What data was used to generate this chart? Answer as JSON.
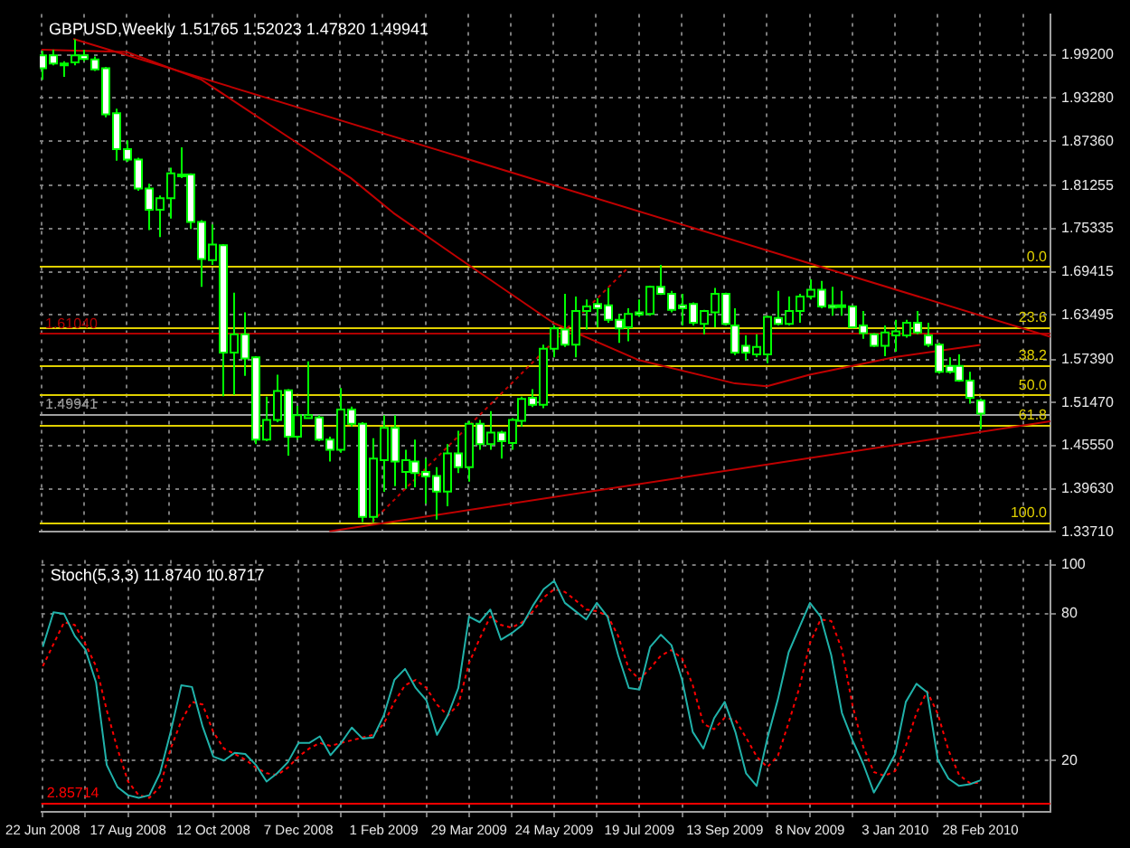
{
  "chart_data": [
    {
      "type": "candlestick",
      "title": "GBPUSD,Weekly 1.51765 1.52023 1.47820 1.49941",
      "colors": [
        "#ffffff",
        "#ffffff",
        "#ffffff",
        "#000000",
        "#ffffff",
        "#ffffff",
        "#ffffff",
        "#ffffff",
        "#ffffff",
        "#ffffff",
        "#ffffff",
        "#000000",
        "#000000",
        "#ffffff",
        "#ffffff",
        "#ffffff",
        "#000000",
        "#ffffff",
        "#000000",
        "#ffffff",
        "#ffffff",
        "#000000",
        "#000000",
        "#ffffff",
        "#000000",
        "#000000",
        "#ffffff",
        "#ffffff",
        "#000000",
        "#ffffff",
        "#ffffff",
        "#000000",
        "#000000",
        "#ffffff",
        "#000000",
        "#ffffff",
        "#ffffff",
        "#ffffff",
        "#000000",
        "#ffffff",
        "#000000",
        "#ffffff",
        "#000000",
        "#ffffff",
        "#000000",
        "#000000",
        "#ffffff",
        "#000000",
        "#000000",
        "#ffffff",
        "#000000",
        "#000000",
        "#ffffff",
        "#ffffff",
        "#ffffff",
        "#000000",
        "#ffffff",
        "#000000",
        "#ffffff",
        "#ffffff",
        "#ffffff",
        "#ffffff",
        "#000000",
        "#000000",
        "#ffffff",
        "#ffffff",
        "#ffffff",
        "#000000",
        "#000000",
        "#ffffff",
        "#000000",
        "#000000",
        "#000000",
        "#ffffff",
        "#ffffff",
        "#ffffff",
        "#ffffff",
        "#ffffff",
        "#ffffff",
        "#000000",
        "#000000",
        "#000000",
        "#ffffff",
        "#ffffff",
        "#ffffff",
        "#ffffff",
        "#ffffff",
        "#ffffff",
        "#ffffff"
      ],
      "x": [
        "2008-06-22",
        "2008-06-29",
        "2008-07-06",
        "2008-07-13",
        "2008-07-20",
        "2008-07-27",
        "2008-08-03",
        "2008-08-10",
        "2008-08-17",
        "2008-08-24",
        "2008-08-31",
        "2008-09-07",
        "2008-09-14",
        "2008-09-21",
        "2008-09-28",
        "2008-10-05",
        "2008-10-12",
        "2008-10-19",
        "2008-10-26",
        "2008-11-02",
        "2008-11-09",
        "2008-11-16",
        "2008-11-23",
        "2008-11-30",
        "2008-12-07",
        "2008-12-14",
        "2008-12-21",
        "2008-12-28",
        "2009-01-04",
        "2009-01-11",
        "2009-01-18",
        "2009-01-25",
        "2009-02-01",
        "2009-02-08",
        "2009-02-15",
        "2009-02-22",
        "2009-03-01",
        "2009-03-08",
        "2009-03-15",
        "2009-03-22",
        "2009-03-29",
        "2009-04-05",
        "2009-04-12",
        "2009-04-19",
        "2009-04-26",
        "2009-05-03",
        "2009-05-10",
        "2009-05-17",
        "2009-05-24",
        "2009-05-31",
        "2009-06-07",
        "2009-06-14",
        "2009-06-21",
        "2009-06-28",
        "2009-07-05",
        "2009-07-12",
        "2009-07-19",
        "2009-07-26",
        "2009-08-02",
        "2009-08-09",
        "2009-08-16",
        "2009-08-23",
        "2009-08-30",
        "2009-09-06",
        "2009-09-13",
        "2009-09-20",
        "2009-09-27",
        "2009-10-04",
        "2009-10-11",
        "2009-10-18",
        "2009-10-25",
        "2009-11-01",
        "2009-11-08",
        "2009-11-15",
        "2009-11-22",
        "2009-11-29",
        "2009-12-06",
        "2009-12-13",
        "2009-12-20",
        "2009-12-27",
        "2010-01-03",
        "2010-01-10",
        "2010-01-17",
        "2010-01-24",
        "2010-01-31",
        "2010-02-07",
        "2010-02-14",
        "2010-02-21",
        "2010-02-28"
      ],
      "ohlc": [
        [
          1.9913,
          1.9976,
          1.9579,
          1.9738
        ],
        [
          1.9913,
          1.9992,
          1.9778,
          1.9802
        ],
        [
          1.9802,
          1.9833,
          1.9619,
          1.9786
        ],
        [
          1.9817,
          2.0135,
          1.9778,
          1.9913
        ],
        [
          1.9913,
          1.9992,
          1.9833,
          1.9865
        ],
        [
          1.9857,
          1.9897,
          1.9698,
          1.9722
        ],
        [
          1.9738,
          1.9754,
          1.9063,
          1.9103
        ],
        [
          1.9119,
          1.9182,
          1.8468,
          1.8626
        ],
        [
          1.8626,
          1.8746,
          1.8452,
          1.8483
        ],
        [
          1.8483,
          1.8507,
          1.8055,
          1.8087
        ],
        [
          1.8087,
          1.815,
          1.7515,
          1.7793
        ],
        [
          1.7793,
          1.7991,
          1.742,
          1.7952
        ],
        [
          1.7952,
          1.8372,
          1.7674,
          1.8293
        ],
        [
          1.8277,
          1.865,
          1.8229,
          1.8261
        ],
        [
          1.8277,
          1.8293,
          1.7531,
          1.7626
        ],
        [
          1.7626,
          1.765,
          1.6737,
          1.7118
        ],
        [
          1.7102,
          1.7594,
          1.7038,
          1.7316
        ],
        [
          1.7308,
          1.7324,
          1.5236,
          1.5832
        ],
        [
          1.5832,
          1.6657,
          1.5252,
          1.6086
        ],
        [
          1.6086,
          1.6387,
          1.5514,
          1.5752
        ],
        [
          1.5768,
          1.5784,
          1.4577,
          1.464
        ],
        [
          1.464,
          1.5228,
          1.4617,
          1.491
        ],
        [
          1.491,
          1.553,
          1.4879,
          1.5307
        ],
        [
          1.5315,
          1.5331,
          1.4418,
          1.468
        ],
        [
          1.468,
          1.5101,
          1.464,
          1.4974
        ],
        [
          1.4934,
          1.5712,
          1.4926,
          1.4974
        ],
        [
          1.4942,
          1.4974,
          1.4617,
          1.464
        ],
        [
          1.464,
          1.468,
          1.4339,
          1.4498
        ],
        [
          1.4498,
          1.5347,
          1.4458,
          1.5053
        ],
        [
          1.5053,
          1.5093,
          1.4815,
          1.4855
        ],
        [
          1.4855,
          1.4879,
          1.3505,
          1.3577
        ],
        [
          1.3577,
          1.4656,
          1.3505,
          1.4378
        ],
        [
          1.4355,
          1.4974,
          1.3921,
          1.4799
        ],
        [
          1.4799,
          1.4974,
          1.4001,
          1.4339
        ],
        [
          1.4196,
          1.4498,
          1.3961,
          1.4355
        ],
        [
          1.4339,
          1.464,
          1.3985,
          1.418
        ],
        [
          1.4196,
          1.4379,
          1.3762,
          1.4132
        ],
        [
          1.414,
          1.4259,
          1.354,
          1.3926
        ],
        [
          1.3926,
          1.4577,
          1.3723,
          1.445
        ],
        [
          1.445,
          1.476,
          1.418,
          1.4259
        ],
        [
          1.4259,
          1.4895,
          1.4061,
          1.4855
        ],
        [
          1.4855,
          1.491,
          1.4498,
          1.4577
        ],
        [
          1.4577,
          1.503,
          1.4498,
          1.4736
        ],
        [
          1.4736,
          1.476,
          1.4379,
          1.4617
        ],
        [
          1.4593,
          1.4934,
          1.4498,
          1.491
        ],
        [
          1.4895,
          1.5228,
          1.4815,
          1.5196
        ],
        [
          1.5212,
          1.5331,
          1.5085,
          1.5117
        ],
        [
          1.5117,
          1.5943,
          1.5069,
          1.5887
        ],
        [
          1.5887,
          1.6205,
          1.5768,
          1.6165
        ],
        [
          1.6149,
          1.6641,
          1.5911,
          1.5943
        ],
        [
          1.5943,
          1.6602,
          1.5768,
          1.6403
        ],
        [
          1.6403,
          1.6562,
          1.6149,
          1.6467
        ],
        [
          1.6499,
          1.6578,
          1.6181,
          1.6443
        ],
        [
          1.6483,
          1.6721,
          1.6244,
          1.6284
        ],
        [
          1.6284,
          1.6364,
          1.5967,
          1.6165
        ],
        [
          1.6181,
          1.6443,
          1.599,
          1.6364
        ],
        [
          1.6387,
          1.6562,
          1.6324,
          1.6356
        ],
        [
          1.6364,
          1.6753,
          1.634,
          1.6737
        ],
        [
          1.6737,
          1.7038,
          1.6625,
          1.6641
        ],
        [
          1.6641,
          1.6681,
          1.6387,
          1.6419
        ],
        [
          1.6483,
          1.6641,
          1.6205,
          1.6443
        ],
        [
          1.6499,
          1.6522,
          1.6205,
          1.6244
        ],
        [
          1.6228,
          1.6419,
          1.6086,
          1.6403
        ],
        [
          1.6387,
          1.6721,
          1.6181,
          1.6641
        ],
        [
          1.6641,
          1.6657,
          1.6205,
          1.6228
        ],
        [
          1.6205,
          1.6443,
          1.58,
          1.5832
        ],
        [
          1.5927,
          1.607,
          1.5728,
          1.5832
        ],
        [
          1.5808,
          1.6086,
          1.5768,
          1.5911
        ],
        [
          1.5808,
          1.634,
          1.5689,
          1.6324
        ],
        [
          1.6308,
          1.6681,
          1.6205,
          1.6228
        ],
        [
          1.6228,
          1.6602,
          1.6205,
          1.6403
        ],
        [
          1.6403,
          1.6641,
          1.6244,
          1.6602
        ],
        [
          1.6602,
          1.684,
          1.6562,
          1.6697
        ],
        [
          1.6697,
          1.6816,
          1.6443,
          1.6467
        ],
        [
          1.6483,
          1.6737,
          1.634,
          1.6451
        ],
        [
          1.6483,
          1.6681,
          1.634,
          1.6459
        ],
        [
          1.6467,
          1.6483,
          1.6165,
          1.6181
        ],
        [
          1.6205,
          1.6403,
          1.6022,
          1.6101
        ],
        [
          1.6086,
          1.6101,
          1.5911,
          1.5927
        ],
        [
          1.5927,
          1.6205,
          1.5784,
          1.611
        ],
        [
          1.607,
          1.6284,
          1.5847,
          1.6125
        ],
        [
          1.607,
          1.6284,
          1.6038,
          1.6244
        ],
        [
          1.6244,
          1.6403,
          1.6086,
          1.611
        ],
        [
          1.607,
          1.6244,
          1.5911,
          1.5943
        ],
        [
          1.5943,
          1.5967,
          1.5546,
          1.557
        ],
        [
          1.5649,
          1.5768,
          1.5546,
          1.557
        ],
        [
          1.5649,
          1.5808,
          1.5434,
          1.545
        ],
        [
          1.545,
          1.557,
          1.5133,
          1.5212
        ],
        [
          1.51765,
          1.52023,
          1.4782,
          1.49941
        ]
      ],
      "series": [
        {
          "type": "line",
          "color": "#c00000",
          "x": [
            "2008-07-13",
            "2010-04-15"
          ],
          "values": [
            2.014,
            1.605
          ]
        },
        {
          "type": "line",
          "color": "#c00000",
          "x": [
            "2008-06-22",
            "2008-08-17",
            "2008-10-05",
            "2008-12-07",
            "2009-01-11",
            "2009-02-08",
            "2009-03-29",
            "2009-05-24",
            "2009-07-19",
            "2009-09-20",
            "2009-10-11",
            "2009-11-08",
            "2010-01-03",
            "2010-02-28"
          ],
          "values": [
            1.999,
            1.996,
            1.958,
            1.871,
            1.823,
            1.775,
            1.704,
            1.624,
            1.573,
            1.541,
            1.537,
            1.553,
            1.577,
            1.594
          ]
        },
        {
          "type": "line",
          "color": "#c00000",
          "x": [
            "2008-12-28",
            "2010-04-15"
          ],
          "values": [
            1.338,
            1.489
          ]
        },
        {
          "type": "line",
          "color": "#c00000",
          "line_style": "dotted",
          "x": [
            "2009-01-25",
            "2009-07-12"
          ],
          "values": [
            1.351,
            1.7
          ]
        }
      ],
      "ref_lines": [
        {
          "axis": "y",
          "value": 1.702,
          "color": "#e0d000"
        },
        {
          "axis": "y",
          "value": 1.619,
          "color": "#e0d000"
        },
        {
          "axis": "y",
          "value": 1.567,
          "color": "#e0d000"
        },
        {
          "axis": "y",
          "value": 1.526,
          "color": "#e0d000"
        },
        {
          "axis": "y",
          "value": 1.484,
          "color": "#e0d000"
        },
        {
          "axis": "y",
          "value": 1.35,
          "color": "#e0d000"
        },
        {
          "axis": "y",
          "value": 1.6104,
          "label": "1.61040",
          "color": "#b00000"
        },
        {
          "axis": "y",
          "value": 1.49941,
          "label": "1.49941",
          "color": "#a0a0a0"
        }
      ],
      "annotations": [
        {
          "text": "0.0",
          "x": "2010-04-15",
          "y": 1.702
        },
        {
          "text": "23.6",
          "x": "2010-04-15",
          "y": 1.619
        },
        {
          "text": "38.2",
          "x": "2010-04-15",
          "y": 1.567
        },
        {
          "text": "50.0",
          "x": "2010-04-15",
          "y": 1.526
        },
        {
          "text": "61.8",
          "x": "2010-04-15",
          "y": 1.484
        },
        {
          "text": "100.0",
          "x": "2010-04-15",
          "y": 1.35
        }
      ],
      "xlim": [
        "2008-06-21",
        "2010-04-15"
      ],
      "xticks": [
        {
          "value": "2008-06-22",
          "label": null
        },
        {
          "value": "2008-07-20",
          "label": null
        },
        {
          "value": "2008-08-17",
          "label": null
        },
        {
          "value": "2008-09-14",
          "label": null
        },
        {
          "value": "2008-10-12",
          "label": null
        },
        {
          "value": "2008-11-09",
          "label": null
        },
        {
          "value": "2008-12-07",
          "label": null
        },
        {
          "value": "2009-01-04",
          "label": null
        },
        {
          "value": "2009-02-01",
          "label": null
        },
        {
          "value": "2009-03-01",
          "label": null
        },
        {
          "value": "2009-03-29",
          "label": null
        },
        {
          "value": "2009-04-26",
          "label": null
        },
        {
          "value": "2009-05-24",
          "label": null
        },
        {
          "value": "2009-06-21",
          "label": null
        },
        {
          "value": "2009-07-19",
          "label": null
        },
        {
          "value": "2009-08-16",
          "label": null
        },
        {
          "value": "2009-09-13",
          "label": null
        },
        {
          "value": "2009-10-11",
          "label": null
        },
        {
          "value": "2009-11-08",
          "label": null
        },
        {
          "value": "2009-12-06",
          "label": null
        },
        {
          "value": "2010-01-03",
          "label": null
        },
        {
          "value": "2010-01-31",
          "label": null
        },
        {
          "value": "2010-02-28",
          "label": null
        },
        {
          "value": "2010-03-28",
          "label": null
        }
      ],
      "ylim": [
        1.3371,
        2.048
      ],
      "yticks": [
        {
          "value": 1.992,
          "label": "1.99200"
        },
        {
          "value": 1.9328,
          "label": "1.93280"
        },
        {
          "value": 1.8736,
          "label": "1.87360"
        },
        {
          "value": 1.81255,
          "label": "1.81255"
        },
        {
          "value": 1.75335,
          "label": "1.75335"
        },
        {
          "value": 1.69415,
          "label": "1.69415"
        },
        {
          "value": 1.63495,
          "label": "1.63495"
        },
        {
          "value": 1.5739,
          "label": "1.57390"
        },
        {
          "value": 1.5147,
          "label": "1.51470"
        },
        {
          "value": 1.4555,
          "label": "1.45550"
        },
        {
          "value": 1.3963,
          "label": "1.39630"
        },
        {
          "value": 1.3371,
          "label": "1.33710"
        }
      ],
      "grid": true,
      "tick_labels": "y"
    },
    {
      "type": "line",
      "title": "Stoch(5,3,3) 11.8740 10.8717",
      "x": [
        "2008-06-22",
        "2008-06-29",
        "2008-07-06",
        "2008-07-13",
        "2008-07-20",
        "2008-07-27",
        "2008-08-03",
        "2008-08-10",
        "2008-08-17",
        "2008-08-24",
        "2008-08-31",
        "2008-09-07",
        "2008-09-14",
        "2008-09-21",
        "2008-09-28",
        "2008-10-05",
        "2008-10-12",
        "2008-10-19",
        "2008-10-26",
        "2008-11-02",
        "2008-11-09",
        "2008-11-16",
        "2008-11-23",
        "2008-11-30",
        "2008-12-07",
        "2008-12-14",
        "2008-12-21",
        "2008-12-28",
        "2009-01-04",
        "2009-01-11",
        "2009-01-18",
        "2009-01-25",
        "2009-02-01",
        "2009-02-08",
        "2009-02-15",
        "2009-02-22",
        "2009-03-01",
        "2009-03-08",
        "2009-03-15",
        "2009-03-22",
        "2009-03-29",
        "2009-04-05",
        "2009-04-12",
        "2009-04-19",
        "2009-04-26",
        "2009-05-03",
        "2009-05-10",
        "2009-05-17",
        "2009-05-24",
        "2009-05-31",
        "2009-06-07",
        "2009-06-14",
        "2009-06-21",
        "2009-06-28",
        "2009-07-05",
        "2009-07-12",
        "2009-07-19",
        "2009-07-26",
        "2009-08-02",
        "2009-08-09",
        "2009-08-16",
        "2009-08-23",
        "2009-08-30",
        "2009-09-06",
        "2009-09-13",
        "2009-09-20",
        "2009-09-27",
        "2009-10-04",
        "2009-10-11",
        "2009-10-18",
        "2009-10-25",
        "2009-11-01",
        "2009-11-08",
        "2009-11-15",
        "2009-11-22",
        "2009-11-29",
        "2009-12-06",
        "2009-12-13",
        "2009-12-20",
        "2009-12-27",
        "2010-01-03",
        "2010-01-10",
        "2010-01-17",
        "2010-01-24",
        "2010-01-31",
        "2010-02-07",
        "2010-02-14",
        "2010-02-21",
        "2010-02-28"
      ],
      "series": [
        {
          "color": "#20b2aa",
          "values": [
            66.5,
            80.7,
            80,
            71,
            65.4,
            51.9,
            18.2,
            9.2,
            5.8,
            4.7,
            5.8,
            14.8,
            31.7,
            50.8,
            50.1,
            33.9,
            21.6,
            20,
            23.1,
            22.7,
            18.2,
            11.4,
            14.8,
            19.3,
            27.2,
            27.2,
            29.9,
            22.2,
            27.2,
            33.5,
            29,
            29.4,
            38.4,
            53,
            57.5,
            49.7,
            44.7,
            30.5,
            38.4,
            49.7,
            78.9,
            76.6,
            81.8,
            69.4,
            72.1,
            75.5,
            83.4,
            90.1,
            93.5,
            84.5,
            81.1,
            77.7,
            84.5,
            78.9,
            63.1,
            49.7,
            49,
            66.5,
            71.5,
            67.2,
            53,
            31.7,
            24.9,
            37.3,
            44,
            31.7,
            14.8,
            9.6,
            29,
            45.2,
            64.3,
            74.4,
            84.5,
            78.9,
            63.1,
            39.5,
            28.3,
            18.6,
            6.9,
            14.4,
            22.7,
            44,
            51.4,
            47.9,
            20.4,
            12.6,
            9.6,
            10.3,
            11.9
          ]
        },
        {
          "color": "#ff0000",
          "line_style": "dotted",
          "values": [
            58.6,
            67.6,
            76.6,
            75.5,
            67.6,
            58.6,
            40.6,
            24.9,
            11.4,
            5.8,
            4.7,
            9.2,
            24.9,
            36.2,
            44,
            42.9,
            31.7,
            24.9,
            22.7,
            20.4,
            17.1,
            14.8,
            14.1,
            17.1,
            21.6,
            24.9,
            27.2,
            26,
            27.2,
            28.3,
            29.4,
            30.5,
            35,
            44,
            50.8,
            53,
            49.7,
            42.9,
            38.4,
            42.9,
            59.8,
            69.9,
            78.9,
            75.5,
            74.4,
            76.6,
            81.1,
            86.7,
            90.1,
            89,
            85.6,
            81.8,
            81.1,
            79.3,
            71,
            57.5,
            53.2,
            57.7,
            62.9,
            65.2,
            61.8,
            50.8,
            35,
            32.8,
            37.5,
            36.6,
            29.4,
            21.6,
            17.3,
            22,
            35.5,
            49.7,
            68.1,
            77.7,
            77.1,
            65.4,
            42.5,
            25.6,
            15.3,
            13.7,
            15.7,
            26,
            39.5,
            48.3,
            39.1,
            24.2,
            14.1,
            10.8,
            10.9
          ]
        }
      ],
      "ref_lines": [
        {
          "axis": "y",
          "value": 2.85714,
          "label": "2.85714",
          "color": "#ff0000"
        }
      ],
      "xlim": [
        "2008-06-21",
        "2010-04-15"
      ],
      "xticks": [
        {
          "value": "2008-06-22",
          "label": "22 Jun 2008"
        },
        {
          "value": "2008-07-20",
          "label": null
        },
        {
          "value": "2008-08-17",
          "label": "17 Aug 2008"
        },
        {
          "value": "2008-09-14",
          "label": null
        },
        {
          "value": "2008-10-12",
          "label": "12 Oct 2008"
        },
        {
          "value": "2008-11-09",
          "label": null
        },
        {
          "value": "2008-12-07",
          "label": "7 Dec 2008"
        },
        {
          "value": "2009-01-04",
          "label": null
        },
        {
          "value": "2009-02-01",
          "label": "1 Feb 2009"
        },
        {
          "value": "2009-03-01",
          "label": null
        },
        {
          "value": "2009-03-29",
          "label": "29 Mar 2009"
        },
        {
          "value": "2009-04-26",
          "label": null
        },
        {
          "value": "2009-05-24",
          "label": "24 May 2009"
        },
        {
          "value": "2009-06-21",
          "label": null
        },
        {
          "value": "2009-07-19",
          "label": "19 Jul 2009"
        },
        {
          "value": "2009-08-16",
          "label": null
        },
        {
          "value": "2009-09-13",
          "label": "13 Sep 2009"
        },
        {
          "value": "2009-10-11",
          "label": null
        },
        {
          "value": "2009-11-08",
          "label": "8 Nov 2009"
        },
        {
          "value": "2009-12-06",
          "label": null
        },
        {
          "value": "2010-01-03",
          "label": "3 Jan 2010"
        },
        {
          "value": "2010-01-31",
          "label": null
        },
        {
          "value": "2010-02-28",
          "label": "28 Feb 2010"
        },
        {
          "value": "2010-03-28",
          "label": null
        }
      ],
      "ylim": [
        -1,
        102
      ],
      "yticks": [
        100,
        80,
        20
      ],
      "grid": true
    }
  ]
}
